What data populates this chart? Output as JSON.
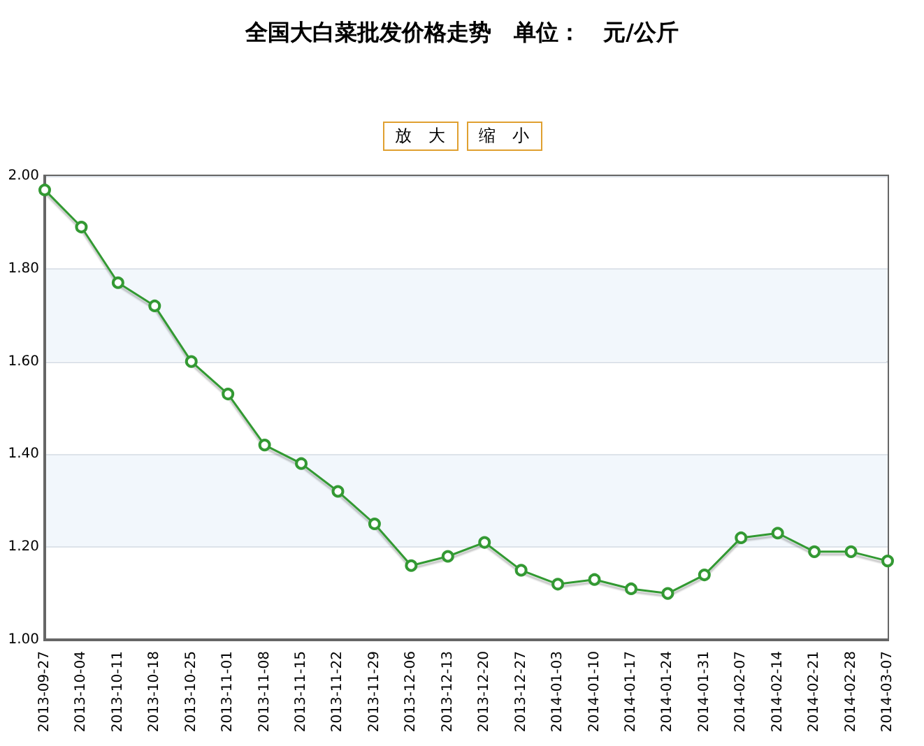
{
  "chart_data": {
    "type": "line",
    "title": "全国大白菜批发价格走势　单位：　元/公斤",
    "annotations": [
      "放　大",
      "缩　小"
    ],
    "categories": [
      "2013-09-27",
      "2013-10-04",
      "2013-10-11",
      "2013-10-18",
      "2013-10-25",
      "2013-11-01",
      "2013-11-08",
      "2013-11-15",
      "2013-11-22",
      "2013-11-29",
      "2013-12-06",
      "2013-12-13",
      "2013-12-20",
      "2013-12-27",
      "2014-01-03",
      "2014-01-10",
      "2014-01-17",
      "2014-01-24",
      "2014-01-31",
      "2014-02-07",
      "2014-02-14",
      "2014-02-21",
      "2014-02-28",
      "2014-03-07"
    ],
    "series": [
      {
        "color": "#339933",
        "values": [
          1.97,
          1.89,
          1.77,
          1.72,
          1.6,
          1.53,
          1.42,
          1.38,
          1.32,
          1.25,
          1.16,
          1.18,
          1.21,
          1.15,
          1.12,
          1.13,
          1.11,
          1.1,
          1.14,
          1.22,
          1.23,
          1.19,
          1.19,
          1.17
        ]
      }
    ],
    "ylim": [
      1,
      2
    ],
    "yticks": [
      {
        "value": 1,
        "label": "1.00"
      },
      {
        "value": 1.2,
        "label": "1.20"
      },
      {
        "value": 1.4,
        "label": "1.40"
      },
      {
        "value": 1.6,
        "label": "1.60"
      },
      {
        "value": 1.8,
        "label": "1.80"
      },
      {
        "value": 2,
        "label": "2.00"
      }
    ],
    "grid": "y",
    "marker": "circle",
    "line_style": "solid"
  }
}
